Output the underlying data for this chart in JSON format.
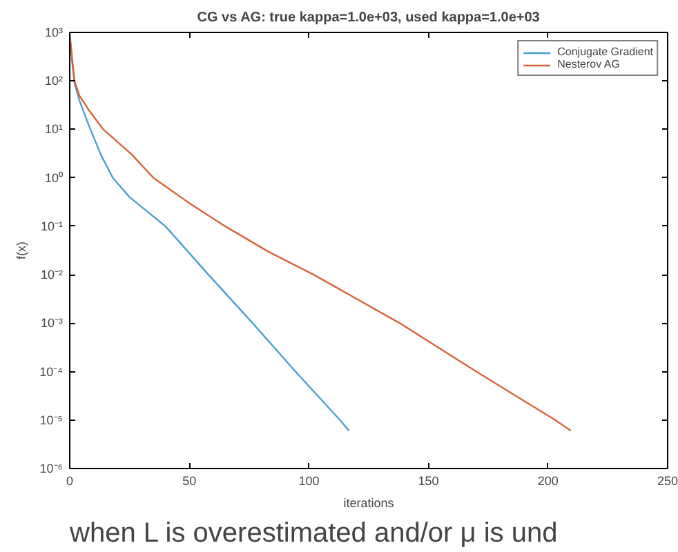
{
  "chart_data": {
    "type": "line",
    "title": "CG vs AG: true kappa=1.0e+03, used kappa=1.0e+03",
    "xlabel": "iterations",
    "ylabel": "f(x)",
    "log": "y",
    "grid": false,
    "legend": "top right",
    "line_style": "solid",
    "marker": "none",
    "xlim": [
      0,
      250
    ],
    "xticks": [
      0,
      50,
      100,
      150,
      200,
      250
    ],
    "ylim": [
      1e-06,
      1000
    ],
    "yticks": [
      {
        "value": 1e-06,
        "label": "10⁻⁶"
      },
      {
        "value": 1e-05,
        "label": "10⁻⁵"
      },
      {
        "value": 0.0001,
        "label": "10⁻⁴"
      },
      {
        "value": 0.001,
        "label": "10⁻³"
      },
      {
        "value": 0.01,
        "label": "10⁻²"
      },
      {
        "value": 0.1,
        "label": "10⁻¹"
      },
      {
        "value": 1,
        "label": "10⁰"
      },
      {
        "value": 10,
        "label": "10¹"
      },
      {
        "value": 100,
        "label": "10²"
      },
      {
        "value": 1000,
        "label": "10³"
      }
    ],
    "series": [
      {
        "name": "Conjugate Gradient",
        "color": "#4b9fcf",
        "x": [
          0,
          1,
          2,
          4,
          8,
          13,
          18,
          25,
          40,
          58,
          76.5,
          94.4,
          113,
          116.8
        ],
        "values": [
          900,
          250,
          90,
          40,
          12,
          3,
          1,
          0.4,
          0.1,
          0.01,
          0.001,
          0.0001,
          1e-05,
          6e-06
        ]
      },
      {
        "name": "Nesterov AG",
        "color": "#d9643a",
        "x": [
          0,
          1,
          2,
          4,
          8,
          14,
          26,
          35,
          50,
          65,
          83,
          102,
          138,
          170,
          203,
          209.5
        ],
        "values": [
          900,
          300,
          100,
          50,
          25,
          10,
          3,
          1,
          0.3,
          0.1,
          0.03,
          0.01,
          0.001,
          0.0001,
          1e-05,
          6e-06
        ]
      }
    ],
    "annotations": [
      "when L is overestimated and/or μ is und"
    ]
  }
}
